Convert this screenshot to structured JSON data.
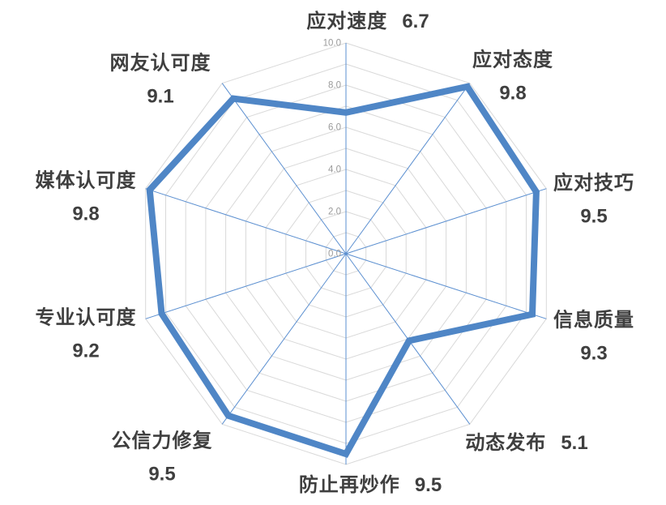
{
  "chart_data": {
    "type": "radar",
    "title": "",
    "categories": [
      "应对速度",
      "应对态度",
      "应对技巧",
      "信息质量",
      "动态发布",
      "防止再炒作",
      "公信力修复",
      "专业认可度",
      "媒体认可度",
      "网友认可度"
    ],
    "values": [
      6.7,
      9.8,
      9.5,
      9.3,
      5.1,
      9.5,
      9.5,
      9.2,
      9.8,
      9.1
    ],
    "axis_range": [
      0,
      10
    ],
    "grid_interval": 1.0,
    "tick_interval": 2.0,
    "tick_labels": [
      "0.0",
      "2.0",
      "4.0",
      "6.0",
      "8.0",
      "10.0"
    ],
    "grid": true,
    "legend": "none",
    "colors": {
      "series_stroke": "#4f86c6",
      "spoke": "#5b8fd0",
      "ring": "#d9d9d9",
      "tick_text": "#9a9a9a",
      "label_text": "#3f3f3f",
      "background": "#ffffff"
    }
  }
}
